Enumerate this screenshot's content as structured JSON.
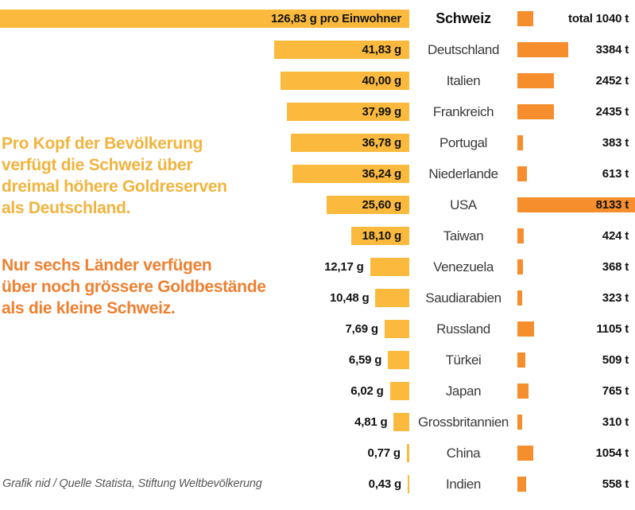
{
  "chart_data": {
    "type": "bar",
    "orientation": "horizontal",
    "categories": [
      "Schweiz",
      "Deutschland",
      "Italien",
      "Frankreich",
      "Portugal",
      "Niederlande",
      "USA",
      "Taiwan",
      "Venezuela",
      "Saudiarabien",
      "Russland",
      "Türkei",
      "Japan",
      "Grossbritannien",
      "China",
      "Indien"
    ],
    "series": [
      {
        "name": "Goldreserven pro Einwohner",
        "unit": "g pro Einwohner",
        "color": "#FBBA3E",
        "values": [
          126.83,
          41.83,
          40.0,
          37.99,
          36.78,
          36.24,
          25.6,
          18.1,
          12.17,
          10.48,
          7.69,
          6.59,
          6.02,
          4.81,
          0.77,
          0.43
        ]
      },
      {
        "name": "Goldreserven total",
        "unit": "t",
        "color": "#F78E2D",
        "values": [
          1040,
          3384,
          2452,
          2435,
          383,
          613,
          8133,
          424,
          368,
          323,
          1105,
          509,
          765,
          310,
          1054,
          558
        ]
      }
    ],
    "legend_position": "none",
    "grid": false
  },
  "rows": [
    {
      "per_capita_label": "126,83 g pro Einwohner",
      "country": "Schweiz",
      "total_label": "total 1040 t",
      "per_capita_g": 126.83,
      "total_t": 1040,
      "label_inside": true,
      "emphasized": true
    },
    {
      "per_capita_label": "41,83 g",
      "country": "Deutschland",
      "total_label": "3384 t",
      "per_capita_g": 41.83,
      "total_t": 3384,
      "label_inside": true,
      "emphasized": false
    },
    {
      "per_capita_label": "40,00 g",
      "country": "Italien",
      "total_label": "2452 t",
      "per_capita_g": 40.0,
      "total_t": 2452,
      "label_inside": true,
      "emphasized": false
    },
    {
      "per_capita_label": "37,99 g",
      "country": "Frankreich",
      "total_label": "2435 t",
      "per_capita_g": 37.99,
      "total_t": 2435,
      "label_inside": true,
      "emphasized": false
    },
    {
      "per_capita_label": "36,78 g",
      "country": "Portugal",
      "total_label": "383 t",
      "per_capita_g": 36.78,
      "total_t": 383,
      "label_inside": true,
      "emphasized": false
    },
    {
      "per_capita_label": "36,24 g",
      "country": "Niederlande",
      "total_label": "613 t",
      "per_capita_g": 36.24,
      "total_t": 613,
      "label_inside": true,
      "emphasized": false
    },
    {
      "per_capita_label": "25,60 g",
      "country": "USA",
      "total_label": "8133 t",
      "per_capita_g": 25.6,
      "total_t": 8133,
      "label_inside": true,
      "emphasized": false
    },
    {
      "per_capita_label": "18,10 g",
      "country": "Taiwan",
      "total_label": "424 t",
      "per_capita_g": 18.1,
      "total_t": 424,
      "label_inside": true,
      "emphasized": false
    },
    {
      "per_capita_label": "12,17 g",
      "country": "Venezuela",
      "total_label": "368 t",
      "per_capita_g": 12.17,
      "total_t": 368,
      "label_inside": false,
      "emphasized": false
    },
    {
      "per_capita_label": "10,48 g",
      "country": "Saudiarabien",
      "total_label": "323 t",
      "per_capita_g": 10.48,
      "total_t": 323,
      "label_inside": false,
      "emphasized": false
    },
    {
      "per_capita_label": "7,69 g",
      "country": "Russland",
      "total_label": "1105 t",
      "per_capita_g": 7.69,
      "total_t": 1105,
      "label_inside": false,
      "emphasized": false
    },
    {
      "per_capita_label": "6,59 g",
      "country": "Türkei",
      "total_label": "509 t",
      "per_capita_g": 6.59,
      "total_t": 509,
      "label_inside": false,
      "emphasized": false
    },
    {
      "per_capita_label": "6,02 g",
      "country": "Japan",
      "total_label": "765 t",
      "per_capita_g": 6.02,
      "total_t": 765,
      "label_inside": false,
      "emphasized": false
    },
    {
      "per_capita_label": "4,81 g",
      "country": "Grossbritannien",
      "total_label": "310 t",
      "per_capita_g": 4.81,
      "total_t": 310,
      "label_inside": false,
      "emphasized": false
    },
    {
      "per_capita_label": "0,77 g",
      "country": "China",
      "total_label": "1054 t",
      "per_capita_g": 0.77,
      "total_t": 1054,
      "label_inside": false,
      "emphasized": false
    },
    {
      "per_capita_label": "0,43 g",
      "country": "Indien",
      "total_label": "558 t",
      "per_capita_g": 0.43,
      "total_t": 558,
      "label_inside": false,
      "emphasized": false
    }
  ],
  "annotations": [
    {
      "text": "Pro Kopf der Bevölkerung\nverfügt die Schweiz über\ndreimal höhere Goldreserven\nals Deutschland.",
      "color": "#F1B43E"
    },
    {
      "text": "Nur sechs Länder verfügen\nüber noch grössere Goldbestände\nals die kleine Schweiz.",
      "color": "#EE8030"
    }
  ],
  "footer": {
    "credit": "Grafik nid / Quelle Statista, Stiftung Weltbevölkerung"
  },
  "colors": {
    "bar_per_capita": "#FBBA3E",
    "bar_total": "#F78E2D",
    "value_text": "#121212",
    "country_text": "#3A3A3A",
    "footer_text": "#595959"
  }
}
